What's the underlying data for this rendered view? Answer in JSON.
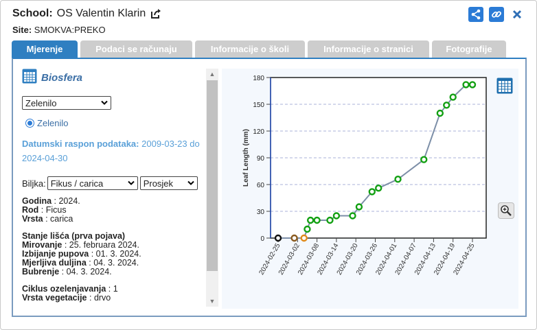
{
  "header": {
    "school_label": "School:",
    "school_name": "OS Valentin Klarin",
    "site_label": "Site:",
    "site_name": "SMOKVA:PREKO"
  },
  "tabs": [
    "Mjerenje",
    "Podaci se računaju",
    "Informacije o školi",
    "Informacije o stranici",
    "Fotografije"
  ],
  "left": {
    "title": "Biosfera",
    "select_value": "Zelenilo",
    "radio_label": "Zelenilo",
    "range_label": "Datumski raspon podataka:",
    "range_value": "2009-03-23 do 2024-04-30",
    "plant_label": "Biljka:",
    "plant_value": "Fikus / carica",
    "mode_value": "Prosjek",
    "info": {
      "year_label": "Godina",
      "year_value": "2024.",
      "genus_label": "Rod",
      "genus_value": "Ficus",
      "species_label": "Vrsta",
      "species_value": "carica",
      "leaf_state_label": "Stanje lišća (prva pojava)",
      "dormancy_label": "Mirovanje",
      "dormancy_value": "25. februara 2024.",
      "budburst_label": "Izbijanje pupova",
      "budburst_value": "01. 3. 2024.",
      "measurable_label": "Mjerljiva duljina",
      "measurable_value": "04. 3. 2024.",
      "swelling_label": "Bubrenje",
      "swelling_value": "04. 3. 2024.",
      "cycle_label": "Ciklus ozelenjavanja",
      "cycle_value": "1",
      "veg_label": "Vrsta vegetacije",
      "veg_value": "drvo"
    }
  },
  "colors": {
    "accent": "#2f7fc1",
    "series_line": "#7d8fa8",
    "point_green": "#12a012",
    "point_black": "#111111",
    "point_brown": "#8a5a1e",
    "point_orange": "#e08a1a"
  },
  "chart_data": {
    "type": "line",
    "ylabel": "Leaf Length (mm)",
    "xlabel": "",
    "ylim": [
      0,
      180
    ],
    "yticks": [
      0,
      30,
      60,
      90,
      120,
      150,
      180
    ],
    "xticks": [
      "2024-02-25",
      "2024-03-02",
      "2024-03-08",
      "2024-03-14",
      "2024-03-20",
      "2024-03-26",
      "2024-04-01",
      "2024-04-07",
      "2024-04-13",
      "2024-04-19",
      "2024-04-25"
    ],
    "grid": true,
    "series": [
      {
        "points": [
          {
            "x": "2024-02-25",
            "y": 0,
            "color": "black"
          },
          {
            "x": "2024-03-01",
            "y": 0,
            "color": "brown"
          },
          {
            "x": "2024-03-04",
            "y": 0,
            "color": "orange"
          },
          {
            "x": "2024-03-05",
            "y": 10,
            "color": "green"
          },
          {
            "x": "2024-03-06",
            "y": 20,
            "color": "green"
          },
          {
            "x": "2024-03-08",
            "y": 20,
            "color": "green"
          },
          {
            "x": "2024-03-12",
            "y": 20,
            "color": "green"
          },
          {
            "x": "2024-03-14",
            "y": 25,
            "color": "green"
          },
          {
            "x": "2024-03-19",
            "y": 25,
            "color": "green"
          },
          {
            "x": "2024-03-21",
            "y": 35,
            "color": "green"
          },
          {
            "x": "2024-03-25",
            "y": 52,
            "color": "green"
          },
          {
            "x": "2024-03-27",
            "y": 56,
            "color": "green"
          },
          {
            "x": "2024-04-02",
            "y": 66,
            "color": "green"
          },
          {
            "x": "2024-04-10",
            "y": 88,
            "color": "green"
          },
          {
            "x": "2024-04-15",
            "y": 140,
            "color": "green"
          },
          {
            "x": "2024-04-17",
            "y": 149,
            "color": "green"
          },
          {
            "x": "2024-04-19",
            "y": 158,
            "color": "green"
          },
          {
            "x": "2024-04-23",
            "y": 172,
            "color": "green"
          },
          {
            "x": "2024-04-25",
            "y": 172,
            "color": "green"
          }
        ]
      }
    ]
  }
}
